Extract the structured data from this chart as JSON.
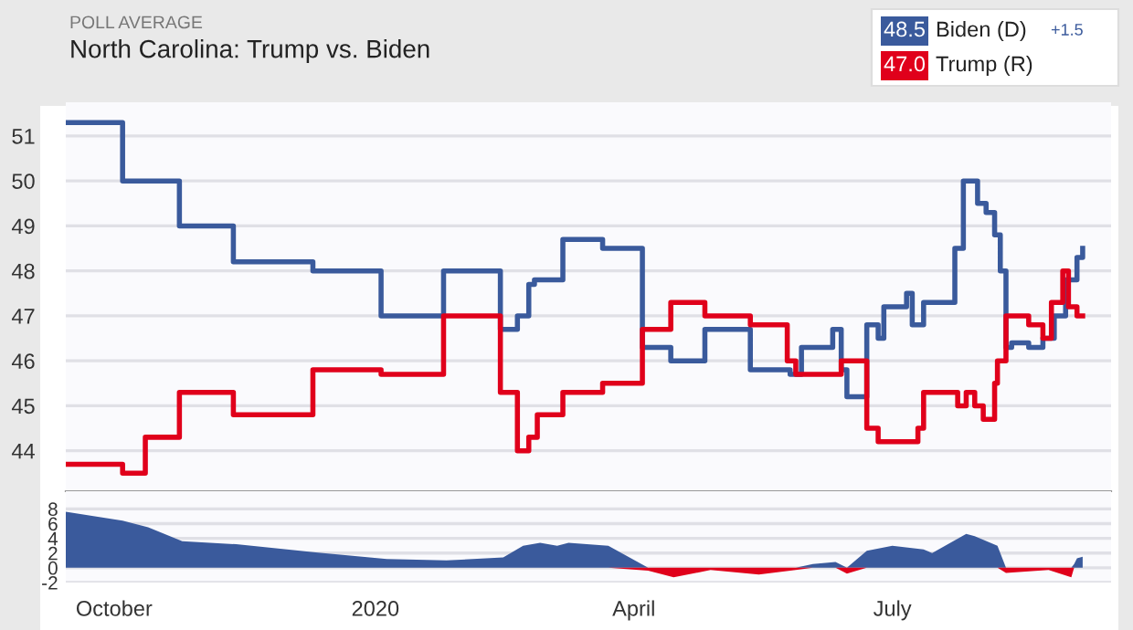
{
  "chart_data": [
    {
      "type": "step",
      "title": "North Carolina: Trump vs. Biden",
      "subtitle": "POLL AVERAGE",
      "annotations": [
        "48.5",
        "47.0",
        "+1.5"
      ],
      "xlim": [
        "2019-09-14",
        "2020-09-16"
      ],
      "ylim": [
        43.1,
        51.75
      ],
      "yticks": [
        44,
        45,
        46,
        47,
        48,
        49,
        50,
        51
      ],
      "grid": "y",
      "legend": "top right",
      "tick_labels": "y",
      "line_style": "solid",
      "series": [
        {
          "name": "Biden (D)",
          "color": "#3a5a9c",
          "x": [
            "2019-09-14",
            "2019-10-04",
            "2019-10-24",
            "2019-11-12",
            "2019-12-10",
            "2020-01-03",
            "2020-01-25",
            "2020-02-14",
            "2020-02-20",
            "2020-02-24",
            "2020-02-26",
            "2020-03-07",
            "2020-03-21",
            "2020-04-04",
            "2020-04-14",
            "2020-04-26",
            "2020-05-12",
            "2020-05-26",
            "2020-05-30",
            "2020-06-10",
            "2020-06-13",
            "2020-06-15",
            "2020-06-22",
            "2020-06-26",
            "2020-06-28",
            "2020-07-06",
            "2020-07-08",
            "2020-07-12",
            "2020-07-23",
            "2020-07-26",
            "2020-07-31",
            "2020-08-03",
            "2020-08-06",
            "2020-08-08",
            "2020-08-10",
            "2020-08-12",
            "2020-08-18",
            "2020-08-23",
            "2020-08-27",
            "2020-08-31",
            "2020-09-04",
            "2020-09-06"
          ],
          "values": [
            51.3,
            50.0,
            49.0,
            48.2,
            48.0,
            47.0,
            48.0,
            46.7,
            47.0,
            47.7,
            47.8,
            48.7,
            48.5,
            46.3,
            46.0,
            46.7,
            45.8,
            45.7,
            46.3,
            46.7,
            45.8,
            45.2,
            46.8,
            46.5,
            47.2,
            47.5,
            46.8,
            47.3,
            48.5,
            50.0,
            49.5,
            49.3,
            48.8,
            48.0,
            46.3,
            46.4,
            46.3,
            46.5,
            47.0,
            47.8,
            48.3,
            48.5
          ]
        },
        {
          "name": "Trump (R)",
          "color": "#e0001b",
          "x": [
            "2019-09-14",
            "2019-10-04",
            "2019-10-12",
            "2019-10-24",
            "2019-11-12",
            "2019-12-10",
            "2020-01-03",
            "2020-01-25",
            "2020-02-14",
            "2020-02-20",
            "2020-02-24",
            "2020-02-27",
            "2020-03-07",
            "2020-03-21",
            "2020-04-04",
            "2020-04-14",
            "2020-04-26",
            "2020-05-12",
            "2020-05-25",
            "2020-05-28",
            "2020-06-13",
            "2020-06-22",
            "2020-06-26",
            "2020-07-10",
            "2020-07-12",
            "2020-07-24",
            "2020-07-27",
            "2020-07-30",
            "2020-08-02",
            "2020-08-06",
            "2020-08-07",
            "2020-08-10",
            "2020-08-18",
            "2020-08-23",
            "2020-08-26",
            "2020-08-30",
            "2020-09-01",
            "2020-09-04",
            "2020-09-06"
          ],
          "values": [
            43.7,
            43.5,
            44.3,
            45.3,
            44.8,
            45.8,
            45.7,
            47.0,
            45.3,
            44.0,
            44.3,
            44.8,
            45.3,
            45.5,
            46.7,
            47.3,
            47.0,
            46.8,
            46.0,
            45.7,
            46.0,
            44.5,
            44.2,
            44.5,
            45.3,
            45.0,
            45.3,
            45.0,
            44.7,
            45.5,
            46.0,
            47.0,
            46.8,
            46.5,
            47.3,
            48.0,
            47.2,
            47.0,
            47.0
          ]
        }
      ]
    },
    {
      "type": "area",
      "xlim": [
        "2019-09-14",
        "2020-09-16"
      ],
      "ylim": [
        -2,
        10.4
      ],
      "yticks": [
        -2,
        0,
        2,
        4,
        6,
        8
      ],
      "xticks": [
        {
          "value": "2019-10-01",
          "label": "October"
        },
        {
          "value": "2020-01-01",
          "label": "2020"
        },
        {
          "value": "2020-04-01",
          "label": "April"
        },
        {
          "value": "2020-07-01",
          "label": "July"
        }
      ],
      "grid": "y",
      "x": [
        "2019-09-14",
        "2019-10-04",
        "2019-10-13",
        "2019-10-25",
        "2019-11-13",
        "2019-12-11",
        "2020-01-05",
        "2020-01-26",
        "2020-02-15",
        "2020-02-22",
        "2020-02-28",
        "2020-03-05",
        "2020-03-09",
        "2020-03-23",
        "2020-04-06",
        "2020-04-15",
        "2020-04-28",
        "2020-05-15",
        "2020-05-28",
        "2020-06-03",
        "2020-06-11",
        "2020-06-15",
        "2020-06-22",
        "2020-07-01",
        "2020-07-12",
        "2020-07-15",
        "2020-07-27",
        "2020-07-30",
        "2020-08-07",
        "2020-08-10",
        "2020-08-25",
        "2020-09-02",
        "2020-09-03",
        "2020-09-04",
        "2020-09-06"
      ],
      "series": [
        {
          "color": "#3a5a9c",
          "values": [
            7.6,
            6.4,
            5.5,
            3.6,
            3.2,
            2.1,
            1.2,
            1.0,
            1.4,
            3.0,
            3.4,
            3.0,
            3.4,
            3.0,
            0,
            0,
            0,
            0,
            0,
            0.5,
            0.8,
            0,
            2.3,
            3.0,
            2.5,
            2.0,
            4.6,
            4.3,
            3.0,
            0,
            0,
            0,
            0.5,
            1.3,
            1.5
          ]
        },
        {
          "color": "#e0001b",
          "values": [
            0,
            0,
            0,
            0,
            0,
            0,
            0,
            0,
            0,
            0,
            0,
            0,
            0,
            0,
            -0.4,
            -1.3,
            -0.3,
            -0.9,
            -0.3,
            0,
            0,
            -0.8,
            0,
            0,
            0,
            0,
            0,
            0,
            0,
            -0.7,
            -0.3,
            -1.3,
            0,
            0,
            0
          ]
        }
      ]
    }
  ]
}
